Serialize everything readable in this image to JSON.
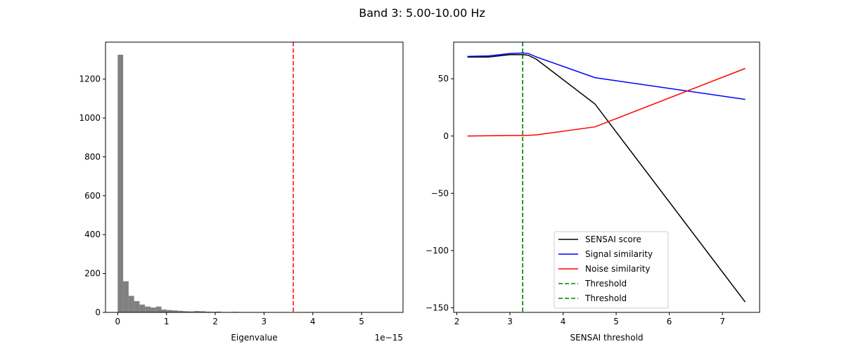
{
  "figure_title": "Band 3: 5.00-10.00 Hz",
  "chart_data": [
    {
      "type": "bar",
      "xlabel": "Eigenvalue",
      "ylabel": "",
      "x_offset_text": "1e−15",
      "xlim": [
        -0.25,
        5.85
      ],
      "ylim": [
        0,
        1390
      ],
      "xticks": [
        0,
        1,
        2,
        3,
        4,
        5
      ],
      "xtick_labels": [
        "0",
        "1",
        "2",
        "3",
        "4",
        "5"
      ],
      "yticks": [
        0,
        200,
        400,
        600,
        800,
        1000,
        1200
      ],
      "ytick_labels": [
        "0",
        "200",
        "400",
        "600",
        "800",
        "1000",
        "1200"
      ],
      "bar_color": "#808080",
      "bin_width": 0.112,
      "bin_starts": [
        0.0,
        0.112,
        0.224,
        0.336,
        0.448,
        0.56,
        0.672,
        0.784,
        0.896,
        1.008,
        1.12,
        1.232,
        1.344,
        1.456,
        1.568,
        1.68,
        1.792,
        1.904,
        2.016,
        2.128,
        2.24,
        2.352,
        2.464,
        2.576,
        2.688,
        2.8,
        2.912,
        3.024,
        3.136,
        3.248,
        3.36,
        3.472,
        3.584,
        3.696,
        3.808,
        3.92,
        4.032,
        4.144,
        4.256,
        4.368,
        4.48,
        4.592,
        4.704,
        4.816,
        4.928,
        5.04,
        5.152,
        5.264,
        5.376,
        5.488
      ],
      "counts": [
        1325,
        160,
        85,
        58,
        40,
        30,
        25,
        30,
        15,
        12,
        10,
        8,
        6,
        5,
        7,
        6,
        4,
        3,
        4,
        2,
        2,
        3,
        2,
        1,
        1,
        2,
        2,
        1,
        1,
        1,
        0,
        1,
        0,
        0,
        0,
        0,
        0,
        0,
        0,
        0,
        0,
        0,
        0,
        0,
        0,
        0,
        0,
        0,
        0,
        1
      ],
      "vlines": [
        {
          "x": 3.6,
          "color": "#ff0000",
          "style": "dashed"
        }
      ]
    },
    {
      "type": "line",
      "xlabel": "SENSAI threshold",
      "ylabel": "",
      "xlim": [
        1.94,
        7.7
      ],
      "ylim": [
        -154,
        82
      ],
      "xticks": [
        2,
        3,
        4,
        5,
        6,
        7
      ],
      "xtick_labels": [
        "2",
        "3",
        "4",
        "5",
        "6",
        "7"
      ],
      "yticks": [
        -150,
        -100,
        -50,
        0,
        50
      ],
      "ytick_labels": [
        "−150",
        "−100",
        "−50",
        "0",
        "50"
      ],
      "series": [
        {
          "name": "SENSAI score",
          "color": "#000000",
          "x": [
            2.2,
            2.6,
            3.0,
            3.25,
            3.35,
            3.5,
            4.6,
            7.43
          ],
          "y": [
            69,
            69,
            71,
            71,
            70.5,
            67,
            28,
            -145
          ]
        },
        {
          "name": "Signal similarity",
          "color": "#0000ff",
          "x": [
            2.2,
            2.6,
            3.0,
            3.25,
            3.35,
            3.5,
            4.6,
            7.43
          ],
          "y": [
            69.5,
            70,
            72,
            72.5,
            72,
            69,
            51,
            32
          ]
        },
        {
          "name": "Noise similarity",
          "color": "#ff0000",
          "x": [
            2.2,
            2.6,
            3.0,
            3.25,
            3.35,
            3.5,
            4.6,
            7.43
          ],
          "y": [
            0,
            0.2,
            0.4,
            0.5,
            0.6,
            1,
            8,
            59
          ]
        }
      ],
      "vlines": [
        {
          "name": "Threshold",
          "x": 3.24,
          "color": "#008000",
          "style": "dashed"
        },
        {
          "name": "Threshold",
          "x": 3.24,
          "color": "#008000",
          "style": "dashed"
        }
      ],
      "legend_position": "lower-center"
    }
  ]
}
